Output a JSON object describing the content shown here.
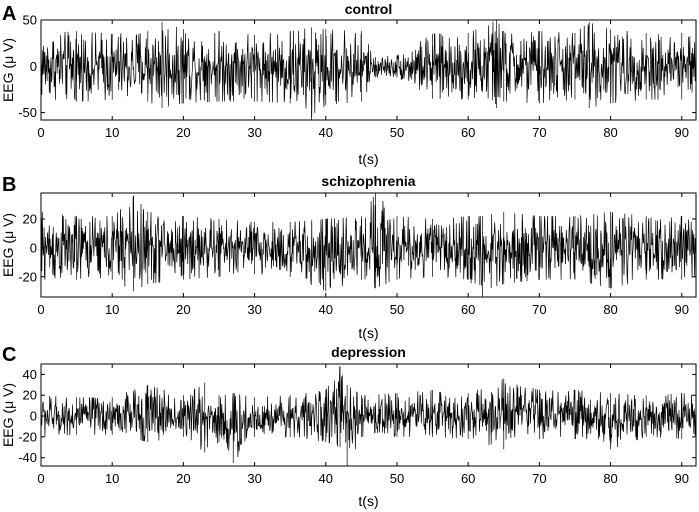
{
  "chart_data": [
    {
      "type": "line",
      "panel": "A",
      "title": "control",
      "xlabel": "t(s)",
      "ylabel": "EEG (μ V)",
      "xlim": [
        0,
        92
      ],
      "ylim": [
        -58,
        50
      ],
      "xticks": [
        0,
        10,
        20,
        30,
        40,
        50,
        60,
        70,
        80,
        90
      ],
      "yticks": [
        -50,
        0,
        50
      ],
      "color": "#000000",
      "grid": false,
      "series": [
        {
          "x": [
            0,
            5,
            10,
            15,
            17,
            20,
            25,
            30,
            35,
            38,
            40,
            45,
            47,
            50,
            55,
            60,
            64,
            65,
            70,
            75,
            77,
            80,
            85,
            90,
            92
          ],
          "y_upper": [
            35,
            38,
            35,
            38,
            48,
            40,
            38,
            34,
            38,
            42,
            40,
            38,
            10,
            12,
            35,
            36,
            50,
            38,
            38,
            36,
            48,
            40,
            36,
            36,
            30
          ],
          "y_lower": [
            -35,
            -38,
            -36,
            -38,
            -45,
            -40,
            -38,
            -38,
            -40,
            -58,
            -42,
            -38,
            -12,
            -12,
            -35,
            -36,
            -45,
            -38,
            -40,
            -36,
            -45,
            -40,
            -36,
            -36,
            -30
          ]
        }
      ]
    },
    {
      "type": "line",
      "panel": "B",
      "title": "schizophrenia",
      "xlabel": "t(s)",
      "ylabel": "EEG (μ V)",
      "xlim": [
        0,
        92
      ],
      "ylim": [
        -34,
        38
      ],
      "xticks": [
        0,
        10,
        20,
        30,
        40,
        50,
        60,
        70,
        80,
        90
      ],
      "yticks": [
        -20,
        0,
        20
      ],
      "color": "#000000",
      "grid": false,
      "series": [
        {
          "x": [
            0,
            5,
            10,
            13,
            15,
            20,
            25,
            30,
            35,
            40,
            45,
            47,
            50,
            55,
            60,
            62,
            65,
            70,
            75,
            80,
            85,
            90,
            92
          ],
          "y_upper": [
            25,
            22,
            22,
            36,
            25,
            22,
            20,
            18,
            18,
            20,
            22,
            38,
            22,
            20,
            22,
            22,
            25,
            22,
            22,
            25,
            22,
            22,
            20
          ],
          "y_lower": [
            -25,
            -22,
            -22,
            -30,
            -25,
            -22,
            -20,
            -18,
            -20,
            -30,
            -22,
            -28,
            -22,
            -20,
            -22,
            -34,
            -25,
            -22,
            -22,
            -28,
            -22,
            -22,
            -20
          ]
        }
      ]
    },
    {
      "type": "line",
      "panel": "C",
      "title": "depression",
      "xlabel": "t(s)",
      "ylabel": "EEG (μ V)",
      "xlim": [
        0,
        92
      ],
      "ylim": [
        -48,
        50
      ],
      "xticks": [
        0,
        10,
        20,
        30,
        40,
        50,
        60,
        70,
        80,
        90
      ],
      "yticks": [
        -40,
        -20,
        0,
        20,
        40
      ],
      "color": "#000000",
      "grid": false,
      "series": [
        {
          "x": [
            0,
            5,
            10,
            15,
            20,
            23,
            25,
            27,
            30,
            35,
            40,
            42,
            43,
            45,
            50,
            55,
            60,
            65,
            70,
            75,
            80,
            85,
            90,
            92
          ],
          "y_upper": [
            20,
            18,
            18,
            30,
            20,
            32,
            20,
            22,
            18,
            20,
            25,
            48,
            30,
            20,
            22,
            25,
            22,
            36,
            25,
            25,
            22,
            20,
            22,
            20
          ],
          "y_lower": [
            -20,
            -18,
            -18,
            -25,
            -20,
            -35,
            -25,
            -45,
            -20,
            -20,
            -25,
            -30,
            -48,
            -20,
            -20,
            -20,
            -22,
            -32,
            -22,
            -22,
            -32,
            -20,
            -22,
            -20
          ]
        }
      ]
    }
  ]
}
